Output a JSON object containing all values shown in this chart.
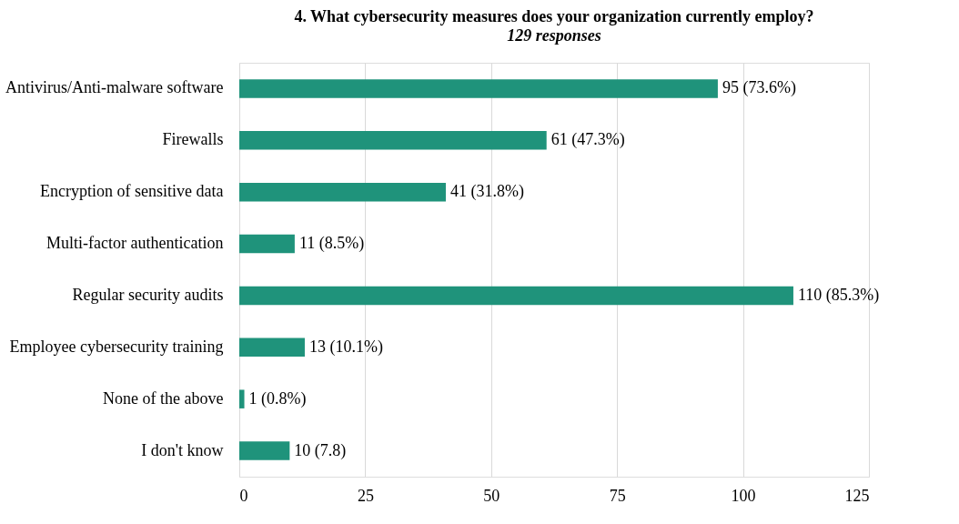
{
  "chart_data": {
    "type": "bar",
    "orientation": "horizontal",
    "title": "4. What cybersecurity measures does your organization currently employ?",
    "subtitle": "129 responses",
    "categories": [
      "Antivirus/Anti-malware software",
      "Firewalls",
      "Encryption of sensitive data",
      "Multi-factor authentication",
      "Regular security audits",
      "Employee cybersecurity training",
      "None of the above",
      "I don't know"
    ],
    "values": [
      95,
      61,
      41,
      11,
      110,
      13,
      1,
      10
    ],
    "value_labels": [
      "95 (73.6%)",
      "61 (47.3%)",
      "41 (31.8%)",
      "11 (8.5%)",
      "110 (85.3%)",
      "13 (10.1%)",
      "1 (0.8%)",
      "10 (7.8)"
    ],
    "color": "#1f937b",
    "xlim": [
      0,
      125
    ],
    "xticks": [
      0,
      25,
      50,
      75,
      100,
      125
    ],
    "grid": "x"
  }
}
